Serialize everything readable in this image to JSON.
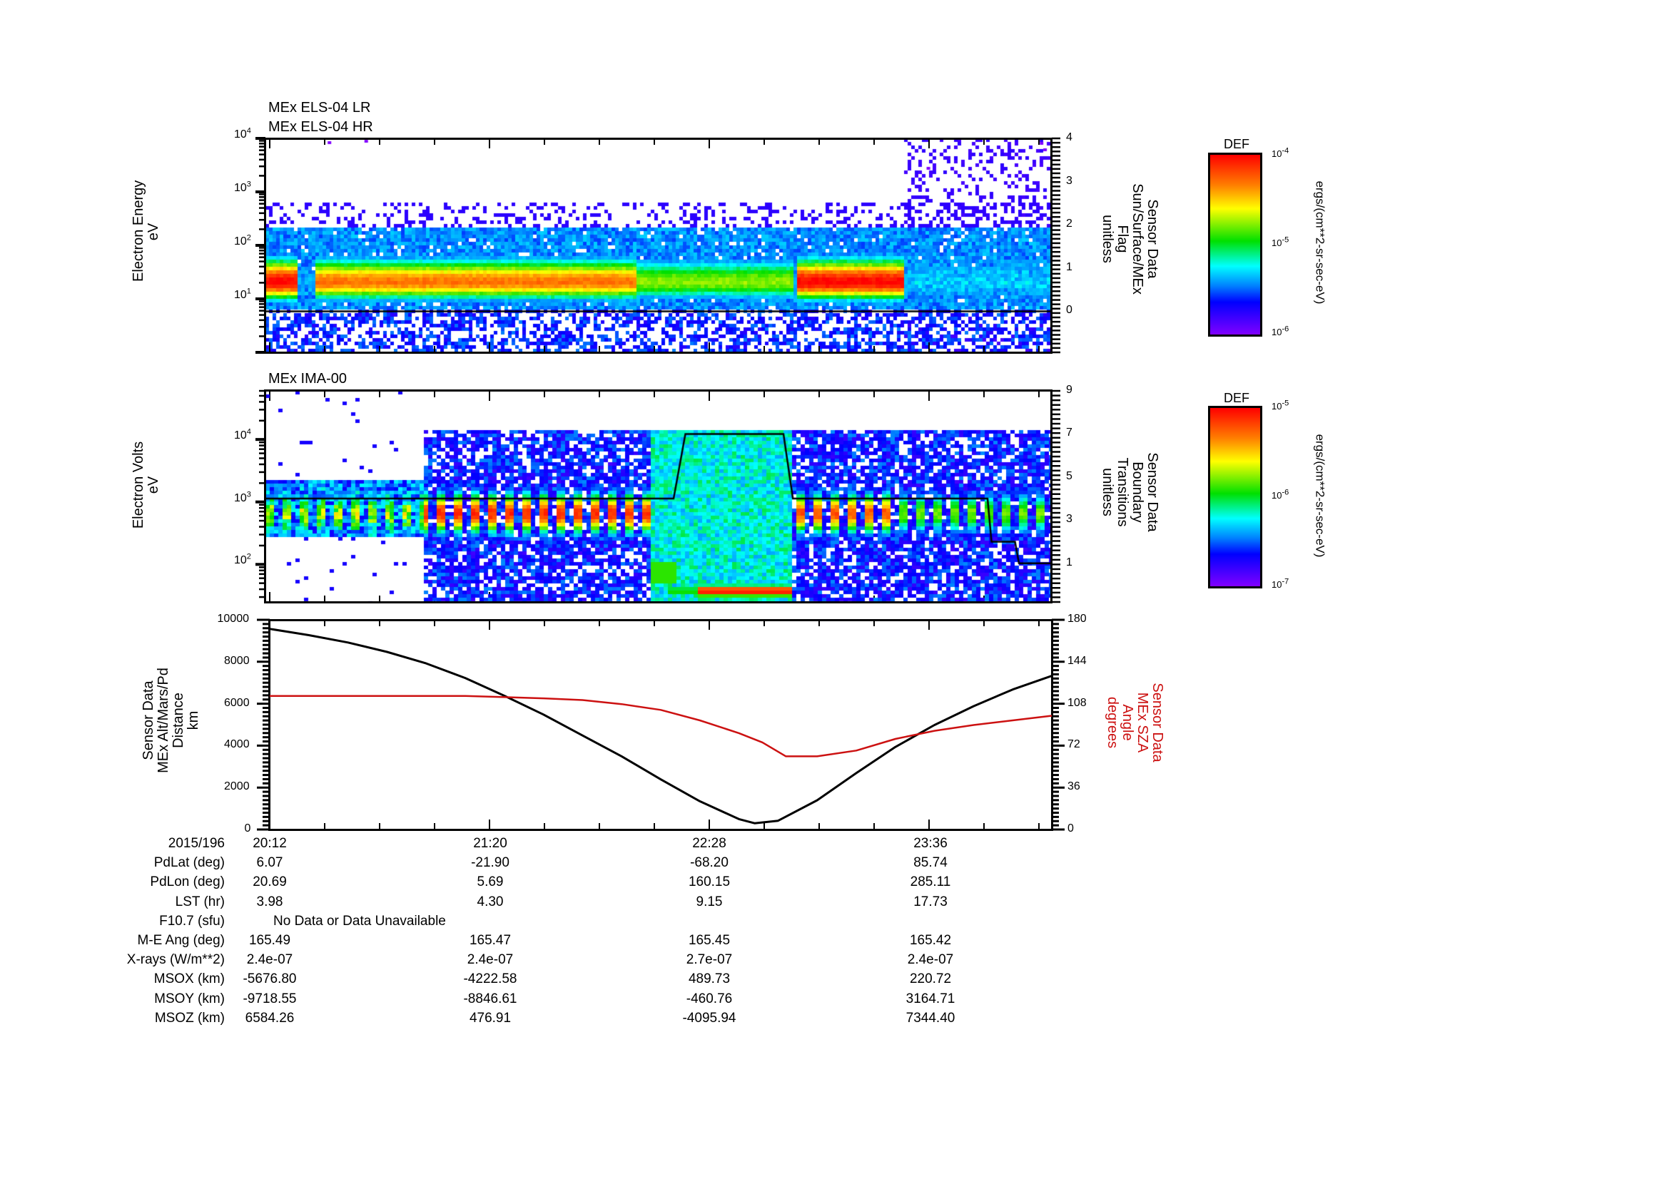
{
  "chart_data": [
    {
      "type": "heatmap",
      "title": [
        "MEx ELS-04 LR",
        "MEx ELS-04 HR"
      ],
      "ylabel": [
        "Electron Energy",
        "eV"
      ],
      "yscale": "log",
      "ylim": [
        1,
        10000
      ],
      "yticks": [
        {
          "base": "10",
          "exp": "1",
          "v": 10
        },
        {
          "base": "10",
          "exp": "2",
          "v": 100
        },
        {
          "base": "10",
          "exp": "3",
          "v": 1000
        },
        {
          "base": "10",
          "exp": "4",
          "v": 10000
        }
      ],
      "y2label": [
        "Sensor Data",
        "Sun/Surface/MEx",
        "Flag",
        "unitless"
      ],
      "y2lim": [
        -0.95,
        4
      ],
      "y2ticks": [
        "0",
        "1",
        "2",
        "3",
        "4"
      ],
      "overlay_line": {
        "name": "Sun/Surface/MEx Flag",
        "constant": 0
      },
      "colorbar": {
        "title": "DEF",
        "min_label": "10-6",
        "mid_label": "10-5",
        "max_label": "10-4",
        "min_exp": "-6",
        "mid_exp": "-5",
        "max_exp": "-4",
        "unit": "ergs/(cm**2-sr-sec-eV)"
      },
      "features": {
        "band_center_eV": 22,
        "intense_regions": [
          {
            "t0": 0.0,
            "t1": 0.04,
            "level": 1.0
          },
          {
            "t0": 0.06,
            "t1": 0.47,
            "level": 0.85
          },
          {
            "t0": 0.47,
            "t1": 0.67,
            "level": 0.62
          },
          {
            "t0": 0.675,
            "t1": 0.81,
            "level": 1.0
          },
          {
            "t0": 0.81,
            "t1": 1.0,
            "level": 0.28
          }
        ]
      }
    },
    {
      "type": "heatmap",
      "title": "MEx IMA-00",
      "ylabel": [
        "Electron Volts",
        "eV"
      ],
      "yscale": "log",
      "ylim": [
        25,
        60000
      ],
      "yticks": [
        {
          "base": "10",
          "exp": "2",
          "v": 100
        },
        {
          "base": "10",
          "exp": "3",
          "v": 1000
        },
        {
          "base": "10",
          "exp": "4",
          "v": 10000
        }
      ],
      "y2label": [
        "Sensor Data",
        "Boundary",
        "Transitions",
        "unitless"
      ],
      "y2lim": [
        -0.8,
        9
      ],
      "y2ticks": [
        "1",
        "3",
        "5",
        "7",
        "9"
      ],
      "overlay_line": {
        "name": "Boundary Transitions",
        "steps": [
          {
            "t": 0.0,
            "v": 4
          },
          {
            "t": 0.52,
            "v": 4
          },
          {
            "t": 0.535,
            "v": 7
          },
          {
            "t": 0.66,
            "v": 7
          },
          {
            "t": 0.672,
            "v": 4
          },
          {
            "t": 0.92,
            "v": 4
          },
          {
            "t": 0.925,
            "v": 2
          },
          {
            "t": 0.955,
            "v": 2
          },
          {
            "t": 0.96,
            "v": 1
          },
          {
            "t": 1.0,
            "v": 1
          }
        ]
      },
      "colorbar": {
        "title": "DEF",
        "min_exp": "-7",
        "mid_exp": "-6",
        "max_exp": "-5",
        "unit": "ergs/(cm**2-sr-sec-eV)"
      },
      "features": {
        "sparse_until": 0.2,
        "magnetosheath_band_eV": 700,
        "gap_region": [
          0.49,
          0.67
        ],
        "low_energy_red_patch": {
          "t0": 0.55,
          "t1": 0.67,
          "eV": 40
        }
      }
    },
    {
      "type": "line",
      "ylabel": [
        "Sensor Data",
        "MEx Alt/Mars/Pd",
        "Distance",
        "km"
      ],
      "ylim": [
        0,
        10000
      ],
      "yticks": [
        "0",
        "2000",
        "4000",
        "6000",
        "8000",
        "10000"
      ],
      "y2label": [
        "Sensor Data",
        "MEx SZA",
        "Angle",
        "degrees"
      ],
      "y2lim": [
        0,
        180
      ],
      "y2ticks": [
        "0",
        "36",
        "72",
        "108",
        "144",
        "180"
      ],
      "x_ticks": [
        "20:12",
        "21:20",
        "22:28",
        "23:36"
      ],
      "series": [
        {
          "name": "MEx Alt/Mars/Pd Distance (km)",
          "color": "#000000",
          "axis": "left",
          "t": [
            0.0,
            0.05,
            0.1,
            0.15,
            0.2,
            0.25,
            0.3,
            0.35,
            0.4,
            0.45,
            0.5,
            0.55,
            0.6,
            0.62,
            0.65,
            0.7,
            0.75,
            0.8,
            0.85,
            0.9,
            0.95,
            1.0
          ],
          "values": [
            9600,
            9300,
            8950,
            8500,
            7950,
            7250,
            6400,
            5500,
            4500,
            3500,
            2400,
            1350,
            500,
            300,
            420,
            1400,
            2700,
            3950,
            5000,
            5900,
            6700,
            7350
          ]
        },
        {
          "name": "MEx SZA Angle (degrees)",
          "color": "#cc1111",
          "axis": "right",
          "t": [
            0.0,
            0.25,
            0.3,
            0.35,
            0.4,
            0.45,
            0.5,
            0.55,
            0.6,
            0.63,
            0.66,
            0.7,
            0.75,
            0.8,
            0.85,
            0.9,
            0.95,
            1.0
          ],
          "values": [
            115,
            115,
            114,
            113,
            111.5,
            108,
            103,
            94,
            83,
            75,
            63,
            63,
            68,
            78,
            85,
            90,
            94,
            98
          ]
        }
      ]
    }
  ],
  "ephemeris": {
    "rows": [
      {
        "label": "2015/196",
        "values": [
          "20:12",
          "21:20",
          "22:28",
          "23:36"
        ]
      },
      {
        "label": "PdLat (deg)",
        "values": [
          "6.07",
          "-21.90",
          "-68.20",
          "85.74"
        ]
      },
      {
        "label": "PdLon (deg)",
        "values": [
          "20.69",
          "5.69",
          "160.15",
          "285.11"
        ]
      },
      {
        "label": "LST (hr)",
        "values": [
          "3.98",
          "4.30",
          "9.15",
          "17.73"
        ]
      },
      {
        "label": "F10.7 (sfu)",
        "note": "No Data or Data Unavailable"
      },
      {
        "label": "M-E Ang (deg)",
        "values": [
          "165.49",
          "165.47",
          "165.45",
          "165.42"
        ]
      },
      {
        "label": "X-rays (W/m**2)",
        "values": [
          "2.4e-07",
          "2.4e-07",
          "2.7e-07",
          "2.4e-07"
        ]
      },
      {
        "label": "MSOX (km)",
        "values": [
          "-5676.80",
          "-4222.58",
          "489.73",
          "220.72"
        ]
      },
      {
        "label": "MSOY (km)",
        "values": [
          "-9718.55",
          "-8846.61",
          "-460.76",
          "3164.71"
        ]
      },
      {
        "label": "MSOZ (km)",
        "values": [
          "6584.26",
          "476.91",
          "-4095.94",
          "7344.40"
        ]
      }
    ]
  },
  "colors": {
    "sza_red": "#cc1111",
    "axis": "#000000"
  }
}
